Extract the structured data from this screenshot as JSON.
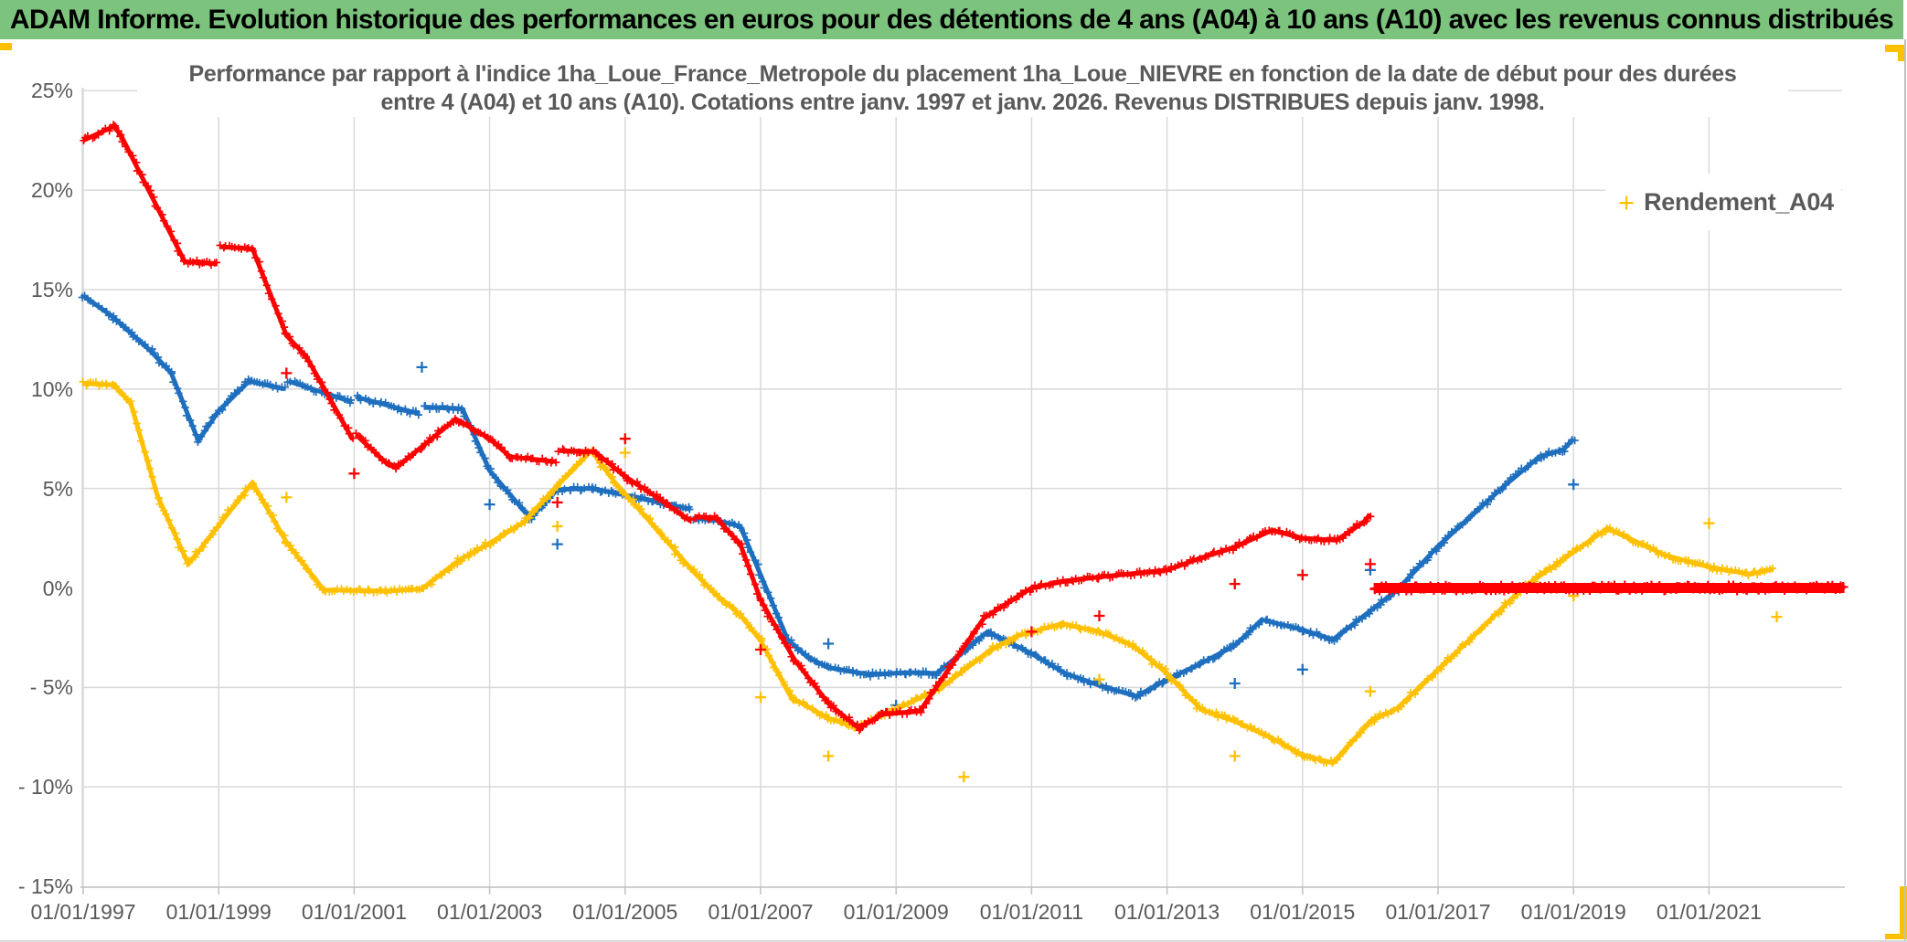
{
  "header": {
    "title": "ADAM Informe. Evolution historique des performances en euros pour des détentions de 4 ans (A04) à 10 ans (A10) avec les revenus connus distribués",
    "bar_color": "#7CC47E"
  },
  "colors": {
    "accent_yellow": "#FFC000",
    "grid": "#D9D9D9",
    "axis": "#BFBFBF",
    "text_gray": "#595959"
  },
  "chart_data": {
    "type": "scatter",
    "title": "Performance par rapport à l'indice 1ha_Loue_France_Metropole  du placement 1ha_Loue_NIEVRE en fonction de la date de début pour des durées",
    "subtitle": "entre 4 (A04) et 10 ans (A10). Cotations entre janv. 1997 et janv. 2026. Revenus DISTRIBUES depuis janv. 1998.",
    "legend": {
      "marker": "+",
      "label": "Rendement_A04",
      "color": "#FFC000",
      "position": "right-top"
    },
    "x_axis": {
      "tick_labels": [
        "01/01/1997",
        "01/01/1999",
        "01/01/2001",
        "01/01/2003",
        "01/01/2005",
        "01/01/2007",
        "01/01/2009",
        "01/01/2011",
        "01/01/2013",
        "01/01/2015",
        "01/01/2017",
        "01/01/2019",
        "01/01/2021"
      ],
      "tick_years": [
        1997,
        1999,
        2001,
        2003,
        2005,
        2007,
        2009,
        2011,
        2013,
        2015,
        2017,
        2019,
        2021
      ],
      "range_years": [
        1997,
        2023.2
      ],
      "grid": true
    },
    "y_axis": {
      "ticks": [
        {
          "label": "25%",
          "value": 25
        },
        {
          "label": "20%",
          "value": 20
        },
        {
          "label": "15%",
          "value": 15
        },
        {
          "label": "10%",
          "value": 10
        },
        {
          "label": "5%",
          "value": 5
        },
        {
          "label": "0%",
          "value": 0
        },
        {
          "label": "- 5%",
          "value": -5
        },
        {
          "label": "- 10%",
          "value": -10
        },
        {
          "label": "- 15%",
          "value": -15
        }
      ],
      "range_percent": [
        -15,
        25
      ],
      "unit": "%",
      "gridline_omitted_at": 0
    },
    "series": [
      {
        "id": "series-blue-a07",
        "label": "",
        "color": "#1F6FBF",
        "marker": "+",
        "anchors": [
          [
            1997,
            14.7
          ],
          [
            1997.45,
            13.6
          ],
          [
            1998,
            11.9
          ],
          [
            1998.3,
            10.8
          ],
          [
            1998.7,
            7.4
          ],
          [
            1999,
            8.9
          ],
          [
            1999.45,
            10.4
          ],
          [
            1999.97,
            10.0
          ],
          [
            2000.03,
            10.4
          ],
          [
            2000.97,
            9.35
          ],
          [
            2001.03,
            9.6
          ],
          [
            2001.97,
            8.75
          ],
          [
            2002.03,
            9.1
          ],
          [
            2002.6,
            9.0
          ],
          [
            2003,
            5.9
          ],
          [
            2003.6,
            3.5
          ],
          [
            2004,
            4.95
          ],
          [
            2004.5,
            5.0
          ],
          [
            2005.25,
            4.5
          ],
          [
            2005.97,
            3.95
          ],
          [
            2006.02,
            3.5
          ],
          [
            2006.35,
            3.4
          ],
          [
            2006.7,
            3.1
          ],
          [
            2007.4,
            -2.6
          ],
          [
            2007.7,
            -3.5
          ],
          [
            2008,
            -4.0
          ],
          [
            2008.6,
            -4.35
          ],
          [
            2009.2,
            -4.25
          ],
          [
            2009.6,
            -4.3
          ],
          [
            2010.35,
            -2.2
          ],
          [
            2011,
            -3.3
          ],
          [
            2011.5,
            -4.3
          ],
          [
            2012,
            -4.9
          ],
          [
            2012.55,
            -5.45
          ],
          [
            2013,
            -4.6
          ],
          [
            2013.5,
            -3.8
          ],
          [
            2014,
            -2.9
          ],
          [
            2014.4,
            -1.6
          ],
          [
            2015,
            -2.1
          ],
          [
            2015.45,
            -2.6
          ],
          [
            2016.4,
            -0.1
          ],
          [
            2017,
            2.1
          ],
          [
            2018,
            5.2
          ],
          [
            2018.5,
            6.6
          ],
          [
            2018.85,
            6.95
          ],
          [
            2019,
            7.5
          ]
        ],
        "scatter_extras": [
          [
            2002,
            11.1
          ],
          [
            2003,
            4.2
          ],
          [
            2004,
            2.2
          ],
          [
            2008,
            -2.8
          ],
          [
            2009,
            -5.9
          ],
          [
            2014,
            -4.8
          ],
          [
            2015,
            -4.1
          ],
          [
            2016,
            0.9
          ],
          [
            2019,
            5.2
          ]
        ]
      },
      {
        "id": "series-yellow-rendement-a04",
        "label": "Rendement_A04",
        "color": "#FFC000",
        "marker": "+",
        "anchors": [
          [
            1997,
            10.3
          ],
          [
            1997.45,
            10.2
          ],
          [
            1997.7,
            9.3
          ],
          [
            1998.1,
            4.6
          ],
          [
            1998.55,
            1.2
          ],
          [
            1999.5,
            5.3
          ],
          [
            2000,
            2.3
          ],
          [
            2000.55,
            -0.1
          ],
          [
            2001.45,
            -0.15
          ],
          [
            2002,
            -0.05
          ],
          [
            2002.55,
            1.4
          ],
          [
            2003,
            2.25
          ],
          [
            2003.5,
            3.3
          ],
          [
            2004,
            5.15
          ],
          [
            2004.5,
            6.9
          ],
          [
            2004.85,
            5.3
          ],
          [
            2005.35,
            3.4
          ],
          [
            2006,
            0.85
          ],
          [
            2006.3,
            -0.2
          ],
          [
            2006.7,
            -1.35
          ],
          [
            2007,
            -2.65
          ],
          [
            2007.45,
            -5.5
          ],
          [
            2008,
            -6.55
          ],
          [
            2008.4,
            -7.0
          ],
          [
            2009,
            -6.1
          ],
          [
            2009.65,
            -5.05
          ],
          [
            2010.4,
            -3.1
          ],
          [
            2010.8,
            -2.4
          ],
          [
            2011.45,
            -1.8
          ],
          [
            2012,
            -2.2
          ],
          [
            2012.5,
            -2.9
          ],
          [
            2013,
            -4.3
          ],
          [
            2013.5,
            -6.1
          ],
          [
            2014,
            -6.7
          ],
          [
            2014.55,
            -7.55
          ],
          [
            2015,
            -8.4
          ],
          [
            2015.45,
            -8.8
          ],
          [
            2016,
            -6.7
          ],
          [
            2016.4,
            -6.05
          ],
          [
            2017.5,
            -2.5
          ],
          [
            2018.25,
            0.0
          ],
          [
            2019.5,
            3.0
          ],
          [
            2020.35,
            1.65
          ],
          [
            2021,
            1.05
          ],
          [
            2021.6,
            0.7
          ],
          [
            2021.95,
            0.95
          ]
        ],
        "scatter_extras": [
          [
            2000,
            4.55
          ],
          [
            2004,
            3.1
          ],
          [
            2005,
            6.8
          ],
          [
            2007,
            -5.5
          ],
          [
            2008,
            -8.45
          ],
          [
            2010,
            -9.5
          ],
          [
            2012,
            -4.6
          ],
          [
            2014,
            -8.45
          ],
          [
            2016,
            -5.2
          ],
          [
            2019,
            -0.4
          ],
          [
            2021,
            3.25
          ],
          [
            2022,
            -1.45
          ]
        ]
      },
      {
        "id": "series-red-a10",
        "label": "",
        "color": "#FF0000",
        "marker": "+",
        "anchors": [
          [
            1997,
            22.5
          ],
          [
            1997.45,
            23.2
          ],
          [
            1997.55,
            22.8
          ],
          [
            1998.5,
            16.4
          ],
          [
            1998.98,
            16.3
          ],
          [
            1999.03,
            17.15
          ],
          [
            1999.5,
            17.05
          ],
          [
            2000,
            12.7
          ],
          [
            2000.3,
            11.6
          ],
          [
            2000.98,
            7.45
          ],
          [
            2001.03,
            7.7
          ],
          [
            2001.5,
            6.2
          ],
          [
            2001.62,
            6.05
          ],
          [
            2002,
            7.1
          ],
          [
            2002.5,
            8.5
          ],
          [
            2003,
            7.5
          ],
          [
            2003.3,
            6.6
          ],
          [
            2003.98,
            6.35
          ],
          [
            2004.03,
            6.9
          ],
          [
            2004.55,
            6.85
          ],
          [
            2005,
            5.6
          ],
          [
            2005.5,
            4.5
          ],
          [
            2005.97,
            3.35
          ],
          [
            2006.02,
            3.6
          ],
          [
            2006.35,
            3.5
          ],
          [
            2006.7,
            2.2
          ],
          [
            2007,
            -0.6
          ],
          [
            2007.5,
            -3.6
          ],
          [
            2008,
            -5.8
          ],
          [
            2008.45,
            -7.05
          ],
          [
            2008.8,
            -6.35
          ],
          [
            2009.35,
            -6.2
          ],
          [
            2010.3,
            -1.5
          ],
          [
            2011,
            0.0
          ],
          [
            2011.5,
            0.35
          ],
          [
            2012,
            0.55
          ],
          [
            2013,
            0.9
          ],
          [
            2013.5,
            1.5
          ],
          [
            2014,
            2.05
          ],
          [
            2014.55,
            2.9
          ],
          [
            2015,
            2.5
          ],
          [
            2015.5,
            2.4
          ],
          [
            2015.9,
            3.3
          ],
          [
            2016,
            3.7
          ]
        ],
        "scatter_extras": [
          [
            2000,
            10.8
          ],
          [
            2001,
            5.75
          ],
          [
            2004,
            4.3
          ],
          [
            2005,
            7.5
          ],
          [
            2007,
            -3.1
          ],
          [
            2011,
            -2.2
          ],
          [
            2012,
            -1.4
          ],
          [
            2014,
            0.2
          ],
          [
            2015,
            0.65
          ],
          [
            2016,
            1.2
          ]
        ]
      },
      {
        "id": "series-red-zero-baseline",
        "label": "",
        "color": "#FF0000",
        "marker": "+",
        "thick": true,
        "anchors": [
          [
            2016.05,
            0.0
          ],
          [
            2023.0,
            0.0
          ]
        ],
        "scatter_extras": []
      }
    ]
  }
}
